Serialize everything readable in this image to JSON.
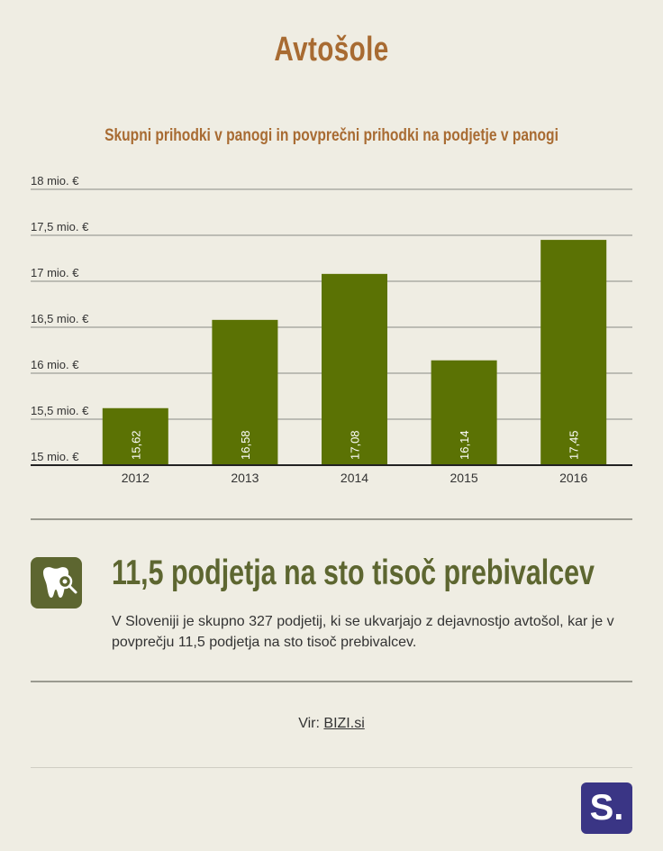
{
  "title": "Avtošole",
  "subtitle": "Skupni prihodki v panogi in povprečni prihodki na podjetje v panogi",
  "colors": {
    "background": "#efede3",
    "title": "#a86b32",
    "bar": "#5b7204",
    "accent": "#5d6630",
    "logo": "#3a3585"
  },
  "chart_data": {
    "type": "bar",
    "categories": [
      "2012",
      "2013",
      "2014",
      "2015",
      "2016"
    ],
    "values": [
      15.62,
      16.58,
      17.08,
      16.14,
      17.45
    ],
    "value_labels": [
      "15,62",
      "16,58",
      "17,08",
      "16,14",
      "17,45"
    ],
    "ylim": [
      15,
      18
    ],
    "yticks": [
      15,
      15.5,
      16,
      16.5,
      17,
      17.5,
      18
    ],
    "ytick_labels": [
      "15 mio. €",
      "15,5 mio. €",
      "16 mio. €",
      "16,5 mio. €",
      "17 mio. €",
      "17,5 mio. €",
      "18 mio. €"
    ],
    "grid": true
  },
  "info": {
    "icon": "tooth-magnifier-icon",
    "heading": "11,5 podjetja na sto tisoč prebivalcev",
    "text": "V Sloveniji je skupno 327 podjetij, ki se ukvarjajo z dejavnostjo avtošol, kar je v povprečju 11,5 podjetja na sto tisoč prebivalcev."
  },
  "source": {
    "prefix": "Vir:",
    "link_text": "BIZI.si"
  },
  "logo": {
    "text": "S."
  }
}
